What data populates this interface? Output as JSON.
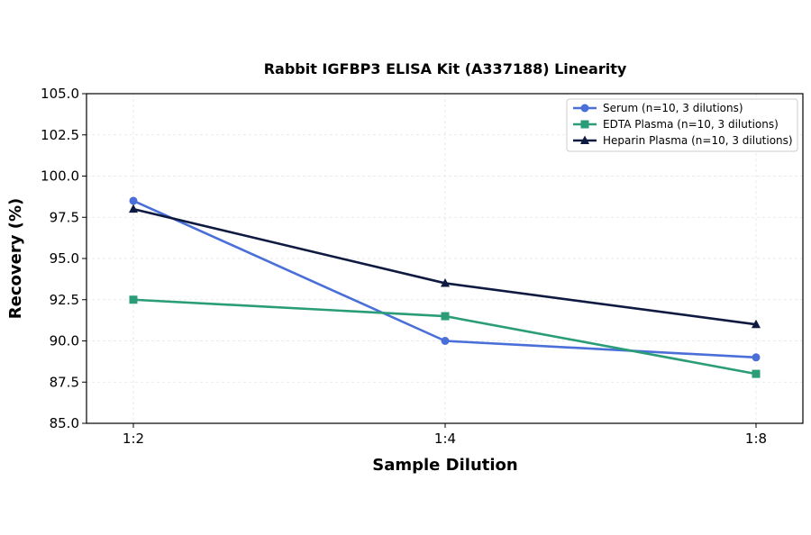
{
  "chart_data": {
    "type": "line",
    "title": "Rabbit IGFBP3 ELISA Kit (A337188) Linearity",
    "xlabel": "Sample Dilution",
    "ylabel": "Recovery (%)",
    "categories": [
      "1:2",
      "1:4",
      "1:8"
    ],
    "ylim": [
      85.0,
      105.0
    ],
    "yticks": [
      "85.0",
      "87.5",
      "90.0",
      "92.5",
      "95.0",
      "97.5",
      "100.0",
      "102.5",
      "105.0"
    ],
    "grid": true,
    "legend_position": "top-right",
    "series": [
      {
        "name": "Serum (n=10, 3 dilutions)",
        "values": [
          98.5,
          90.0,
          89.0
        ],
        "color": "#4a6fd8",
        "marker": "circle"
      },
      {
        "name": "EDTA Plasma (n=10, 3 dilutions)",
        "values": [
          92.5,
          91.5,
          88.0
        ],
        "color": "#2a9d78",
        "marker": "square"
      },
      {
        "name": "Heparin Plasma (n=10, 3 dilutions)",
        "values": [
          98.0,
          93.5,
          91.0
        ],
        "color": "#0f1a40",
        "marker": "triangle"
      }
    ]
  }
}
